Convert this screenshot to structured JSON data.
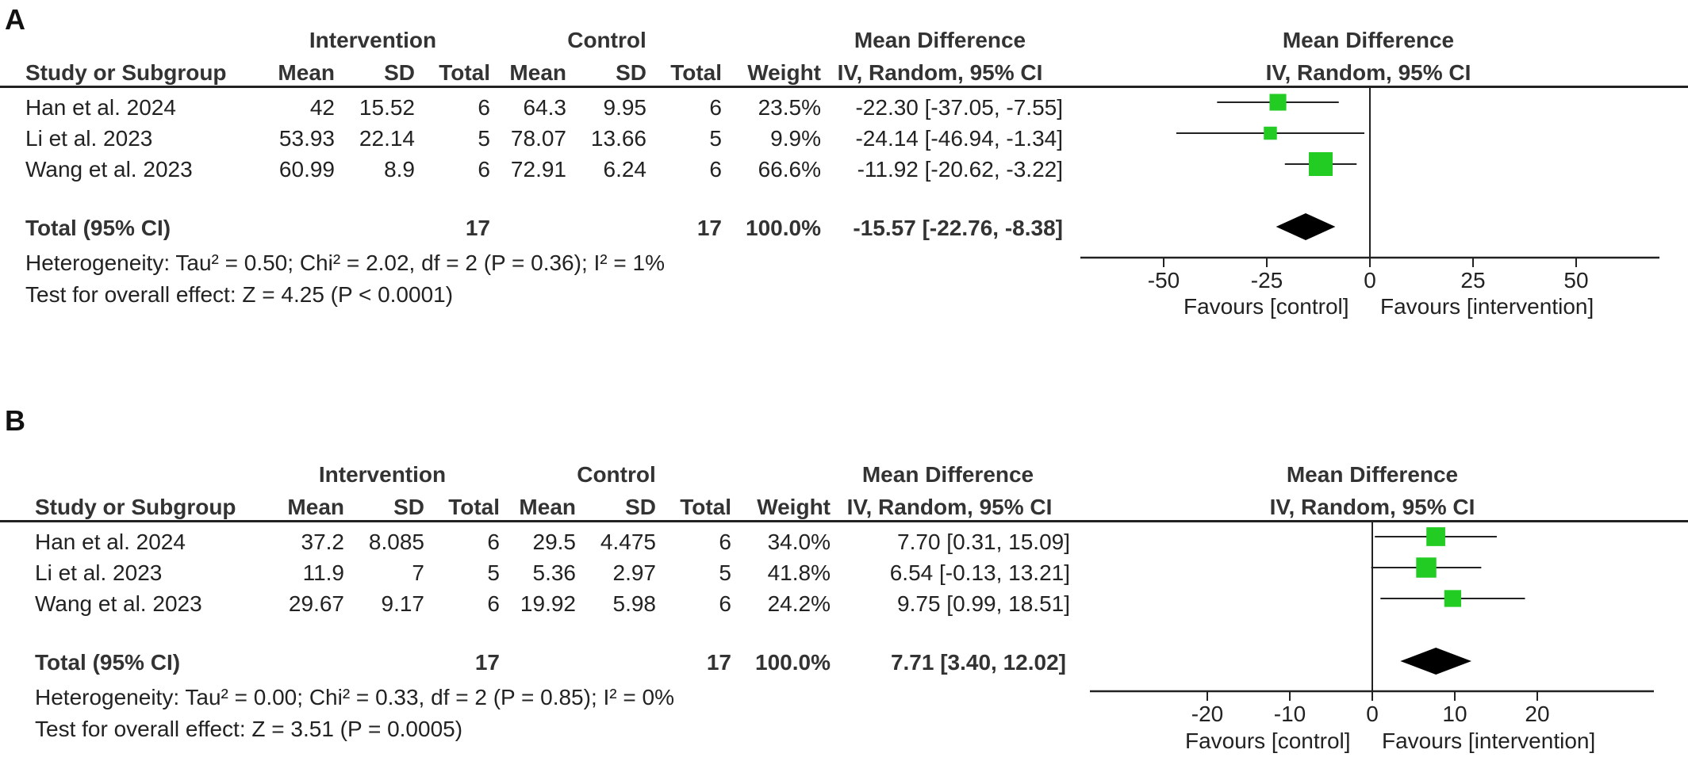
{
  "panels": [
    {
      "label": "A",
      "header": {
        "intervention": "Intervention",
        "control": "Control",
        "md_table": "Mean Difference",
        "md_plot": "Mean Difference",
        "study_col": "Study or Subgroup",
        "mean1": "Mean",
        "sd1": "SD",
        "total1": "Total",
        "mean2": "Mean",
        "sd2": "SD",
        "total2": "Total",
        "weight": "Weight",
        "ci_table": "IV, Random, 95% CI",
        "ci_plot": "IV, Random, 95% CI"
      },
      "rows": [
        {
          "study": "Han et al. 2024",
          "mean1": "42",
          "sd1": "15.52",
          "total1": "6",
          "mean2": "64.3",
          "sd2": "9.95",
          "total2": "6",
          "weight": "23.5%",
          "ci": "-22.30 [-37.05, -7.55]"
        },
        {
          "study": "Li et al. 2023",
          "mean1": "53.93",
          "sd1": "22.14",
          "total1": "5",
          "mean2": "78.07",
          "sd2": "13.66",
          "total2": "5",
          "weight": "9.9%",
          "ci": "-24.14 [-46.94, -1.34]"
        },
        {
          "study": "Wang et al. 2023",
          "mean1": "60.99",
          "sd1": "8.9",
          "total1": "6",
          "mean2": "72.91",
          "sd2": "6.24",
          "total2": "6",
          "weight": "66.6%",
          "ci": "-11.92 [-20.62, -3.22]"
        }
      ],
      "total": {
        "label": "Total (95% CI)",
        "total1": "17",
        "total2": "17",
        "weight": "100.0%",
        "ci": "-15.57 [-22.76, -8.38]"
      },
      "heterogeneity": "Heterogeneity: Tau² = 0.50; Chi² = 2.02, df = 2 (P = 0.36); I² = 1%",
      "overall": "Test for overall effect: Z = 4.25 (P < 0.0001)",
      "favours_left": "Favours [control]",
      "favours_right": "Favours [intervention]"
    },
    {
      "label": "B",
      "header": {
        "intervention": "Intervention",
        "control": "Control",
        "md_table": "Mean Difference",
        "md_plot": "Mean Difference",
        "study_col": "Study or Subgroup",
        "mean1": "Mean",
        "sd1": "SD",
        "total1": "Total",
        "mean2": "Mean",
        "sd2": "SD",
        "total2": "Total",
        "weight": "Weight",
        "ci_table": "IV, Random, 95% CI",
        "ci_plot": "IV, Random, 95% CI"
      },
      "rows": [
        {
          "study": "Han et al. 2024",
          "mean1": "37.2",
          "sd1": "8.085",
          "total1": "6",
          "mean2": "29.5",
          "sd2": "4.475",
          "total2": "6",
          "weight": "34.0%",
          "ci": "7.70 [0.31, 15.09]"
        },
        {
          "study": "Li et al. 2023",
          "mean1": "11.9",
          "sd1": "7",
          "total1": "5",
          "mean2": "5.36",
          "sd2": "2.97",
          "total2": "5",
          "weight": "41.8%",
          "ci": "6.54 [-0.13, 13.21]"
        },
        {
          "study": "Wang et al. 2023",
          "mean1": "29.67",
          "sd1": "9.17",
          "total1": "6",
          "mean2": "19.92",
          "sd2": "5.98",
          "total2": "6",
          "weight": "24.2%",
          "ci": "9.75 [0.99, 18.51]"
        }
      ],
      "total": {
        "label": "Total (95% CI)",
        "total1": "17",
        "total2": "17",
        "weight": "100.0%",
        "ci": "7.71 [3.40, 12.02]"
      },
      "heterogeneity": "Heterogeneity: Tau² = 0.00; Chi² = 0.33, df = 2 (P = 0.85); I² = 0%",
      "overall": "Test for overall effect: Z = 3.51 (P = 0.0005)",
      "favours_left": "Favours [control]",
      "favours_right": "Favours [intervention]"
    }
  ],
  "chart_data": [
    {
      "type": "forest",
      "panel": "A",
      "colors": {
        "study_marker": "#22cc22",
        "summary_diamond": "#000000"
      },
      "xlim": [
        -70,
        70
      ],
      "x_ticks": [
        -50,
        -25,
        0,
        25,
        50
      ],
      "x_tick_labels": [
        "-50",
        "-25",
        "0",
        "25",
        "50"
      ],
      "studies": [
        {
          "name": "Han et al. 2024",
          "md": -22.3,
          "lo": -37.05,
          "hi": -7.55,
          "weight": 23.5
        },
        {
          "name": "Li et al. 2023",
          "md": -24.14,
          "lo": -46.94,
          "hi": -1.34,
          "weight": 9.9
        },
        {
          "name": "Wang et al. 2023",
          "md": -11.92,
          "lo": -20.62,
          "hi": -3.22,
          "weight": 66.6
        }
      ],
      "summary": {
        "md": -15.57,
        "lo": -22.76,
        "hi": -8.38
      }
    },
    {
      "type": "forest",
      "panel": "B",
      "colors": {
        "study_marker": "#22cc22",
        "summary_diamond": "#000000"
      },
      "xlim": [
        -35,
        35
      ],
      "x_ticks": [
        -20,
        -10,
        0,
        10,
        20
      ],
      "x_tick_labels": [
        "-20",
        "-10",
        "0",
        "10",
        "20"
      ],
      "studies": [
        {
          "name": "Han et al. 2024",
          "md": 7.7,
          "lo": 0.31,
          "hi": 15.09,
          "weight": 34.0
        },
        {
          "name": "Li et al. 2023",
          "md": 6.54,
          "lo": -0.13,
          "hi": 13.21,
          "weight": 41.8
        },
        {
          "name": "Wang et al. 2023",
          "md": 9.75,
          "lo": 0.99,
          "hi": 18.51,
          "weight": 24.2
        }
      ],
      "summary": {
        "md": 7.71,
        "lo": 3.4,
        "hi": 12.02
      }
    }
  ]
}
